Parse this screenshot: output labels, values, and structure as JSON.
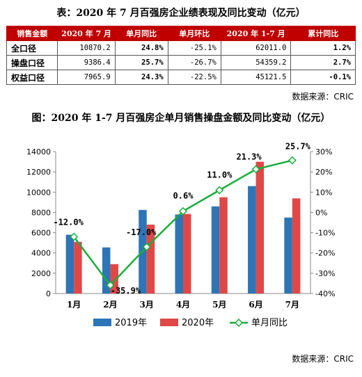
{
  "table": {
    "title": "表：2020 年 7 月百强房企业绩表现及同比变动（亿元）",
    "headers": [
      "销售金额",
      "2020 年 7 月",
      "单月同比",
      "单月环比",
      "2020 年 1-7 月",
      "累计同比"
    ],
    "rows": [
      [
        "全口径",
        "10870.2",
        "24.8%",
        "-25.1%",
        "62011.0",
        "1.2%"
      ],
      [
        "操盘口径",
        "9386.4",
        "25.7%",
        "-26.7%",
        "54359.2",
        "2.7%"
      ],
      [
        "权益口径",
        "7965.9",
        "24.3%",
        "-22.5%",
        "45121.5",
        "-0.1%"
      ]
    ],
    "source": "数据来源：CRIC"
  },
  "chart_data": {
    "type": "bar",
    "title": "图：2020 年 1-7 月百强房企单月销售操盘金额及同比变动（亿元）",
    "categories": [
      "1月",
      "2月",
      "3月",
      "4月",
      "5月",
      "6月",
      "7月"
    ],
    "series": [
      {
        "name": "2019年",
        "type": "bar",
        "axis": "left",
        "color": "#2e75b6",
        "values": [
          5800,
          4550,
          8250,
          7800,
          8600,
          10600,
          7500
        ]
      },
      {
        "name": "2020年",
        "type": "bar",
        "axis": "left",
        "color": "#e04848",
        "values": [
          5100,
          2900,
          6800,
          7850,
          9500,
          13000,
          9386.4
        ]
      },
      {
        "name": "单月同比",
        "type": "line",
        "axis": "right",
        "color": "#1aae3c",
        "values": [
          -12.0,
          -35.9,
          -17.0,
          0.6,
          11.0,
          21.3,
          25.7
        ],
        "labels": [
          "-12.0%",
          "-35.9%",
          "-17.0%",
          "0.6%",
          "11.0%",
          "21.3%",
          "25.7%"
        ]
      }
    ],
    "ylim": [
      0,
      14000
    ],
    "yticks": [
      0,
      2000,
      4000,
      6000,
      8000,
      10000,
      12000,
      14000
    ],
    "y2lim": [
      -40,
      30
    ],
    "y2ticks": [
      "-40%",
      "-30%",
      "-20%",
      "-10%",
      "0%",
      "10%",
      "20%",
      "30%"
    ],
    "legend_position": "bottom",
    "source": "数据来源：CRIC"
  }
}
